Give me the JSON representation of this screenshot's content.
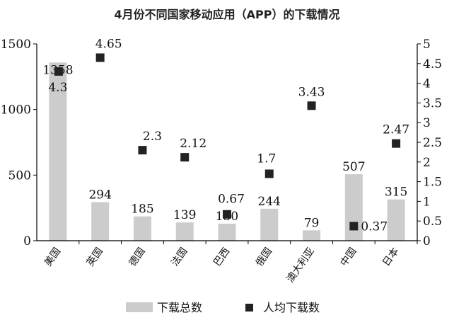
{
  "chart_data": {
    "type": "bar",
    "title": "4月份不同国家移动应用（APP）的下载情况",
    "categories": [
      "美国",
      "英国",
      "德国",
      "法国",
      "巴西",
      "俄国",
      "澳大利亚",
      "中国",
      "日本"
    ],
    "series": [
      {
        "name": "下载总数",
        "type": "bar",
        "axis": "left",
        "color": "#cccccc",
        "values": [
          1358,
          294,
          185,
          139,
          130,
          244,
          79,
          507,
          315
        ]
      },
      {
        "name": "人均下载数",
        "type": "scatter",
        "axis": "right",
        "color": "#222222",
        "values": [
          4.3,
          4.65,
          2.3,
          2.12,
          0.67,
          1.7,
          3.43,
          0.37,
          2.47
        ]
      }
    ],
    "y_left": {
      "ylim": [
        0,
        1500
      ],
      "ticks": [
        "0",
        "500",
        "1000",
        "1500"
      ]
    },
    "y_right": {
      "ylim": [
        0,
        5
      ],
      "ticks": [
        "0",
        "0.5",
        "1",
        "1.5",
        "2",
        "2.5",
        "3",
        "3.5",
        "4",
        "4.5",
        "5"
      ]
    },
    "legend": {
      "placement": "bottom",
      "entries": [
        "下载总数",
        "人均下载数"
      ]
    },
    "grid": false
  }
}
